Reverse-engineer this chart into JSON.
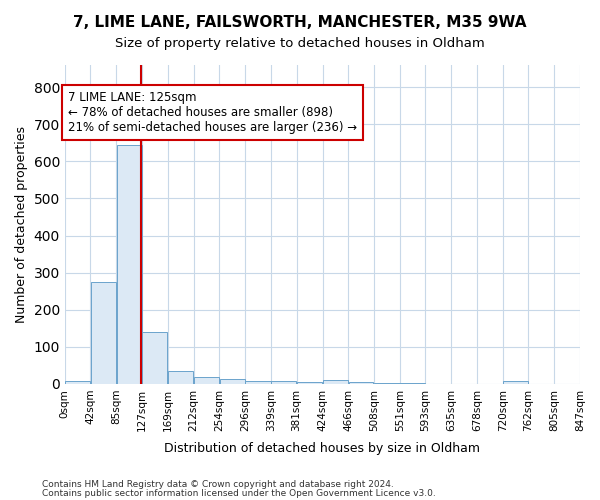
{
  "title": "7, LIME LANE, FAILSWORTH, MANCHESTER, M35 9WA",
  "subtitle": "Size of property relative to detached houses in Oldham",
  "xlabel": "Distribution of detached houses by size in Oldham",
  "ylabel": "Number of detached properties",
  "footer_line1": "Contains HM Land Registry data © Crown copyright and database right 2024.",
  "footer_line2": "Contains public sector information licensed under the Open Government Licence v3.0.",
  "annotation_line1": "7 LIME LANE: 125sqm",
  "annotation_line2": "← 78% of detached houses are smaller (898)",
  "annotation_line3": "21% of semi-detached houses are larger (236) →",
  "property_size": 125,
  "bar_color": "#dce9f5",
  "bar_edge_color": "#6aa3cc",
  "marker_line_color": "#cc0000",
  "annotation_box_color": "#ffffff",
  "annotation_box_edge_color": "#cc0000",
  "background_color": "#ffffff",
  "grid_color": "#c8d8e8",
  "bins": [
    0,
    42,
    85,
    127,
    169,
    212,
    254,
    296,
    339,
    381,
    424,
    466,
    508,
    551,
    593,
    635,
    678,
    720,
    762,
    805,
    847
  ],
  "bin_labels": [
    "0sqm",
    "42sqm",
    "85sqm",
    "127sqm",
    "169sqm",
    "212sqm",
    "254sqm",
    "296sqm",
    "339sqm",
    "381sqm",
    "424sqm",
    "466sqm",
    "508sqm",
    "551sqm",
    "593sqm",
    "635sqm",
    "678sqm",
    "720sqm",
    "762sqm",
    "805sqm",
    "847sqm"
  ],
  "bar_heights": [
    7,
    275,
    645,
    140,
    35,
    18,
    12,
    9,
    7,
    6,
    10,
    5,
    3,
    2,
    1,
    1,
    1,
    7,
    1,
    1
  ],
  "ylim": [
    0,
    860
  ],
  "yticks": [
    0,
    100,
    200,
    300,
    400,
    500,
    600,
    700,
    800
  ]
}
